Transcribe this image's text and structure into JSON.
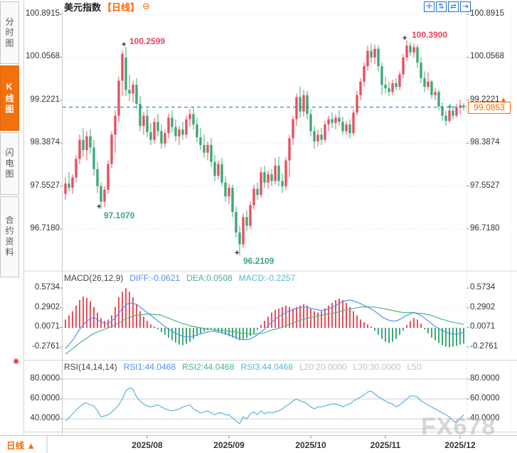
{
  "titlebar": {
    "symbol": "美元指数",
    "period": "【日线】",
    "collapse_glyph": "⊖"
  },
  "toolbar": {
    "icons": [
      {
        "name": "crosshair",
        "glyph": "✛"
      },
      {
        "name": "y-axis-scale",
        "glyph": "⇅"
      },
      {
        "name": "x-axis-scale",
        "glyph": "⇄"
      },
      {
        "name": "go-to-latest",
        "glyph": "⇥"
      }
    ]
  },
  "sidebar": {
    "tabs": [
      {
        "label": "分时图",
        "active": false
      },
      {
        "label": "K线图",
        "active": true
      },
      {
        "label": "闪电图",
        "active": false
      },
      {
        "label": "合约资料",
        "active": false
      }
    ]
  },
  "price_axis": {
    "labels": [
      "100.8915",
      "100.0568",
      "99.2221",
      "98.3874",
      "97.5527",
      "96.7180"
    ]
  },
  "macd_axis": {
    "labels": [
      "0.5734",
      "0.2902",
      "0.0071",
      "-0.2761"
    ]
  },
  "rsi_axis": {
    "labels": [
      "80.0000",
      "60.0000",
      "40.0000"
    ]
  },
  "macd_header": {
    "name": "MACD(26,12,9)",
    "diff": "DIFF:-0.0621",
    "dea": "DEA:0.0508",
    "macd": "MACD:-0.2257"
  },
  "rsi_header": {
    "name": "RSI(14,14,14)",
    "rsi1": "RSI1:44.0468",
    "rsi2": "RSI2:44.0468",
    "rsi3": "RSI3:44.0468",
    "l20": "L20:20.0000",
    "l30": "L30:30.0000",
    "l50": "L50:"
  },
  "bottom_bar": {
    "period": "日线 ▲",
    "dates": [
      "2025/08",
      "2025/09",
      "2025/10",
      "2025/11",
      "2025/12"
    ]
  },
  "watermark": "FX678",
  "ui": {
    "marker_glyph": "+",
    "live_glyph": "✺",
    "tag_arrow_glyph": "▲",
    "latest_marker_glyph": "+"
  },
  "colors": {
    "up": "#e8505f",
    "down": "#3fa877",
    "diff": "#4f93f7",
    "dea": "#4db784",
    "macd_value": "#56b7d6",
    "rsi_line": "#58b4de",
    "current_line": "#1e7fe0",
    "annotation_high": "#e8465a",
    "annotation_low": "#3aa878",
    "accent_orange": "#ff6600",
    "muted_label": "#c2c2c6",
    "toolbar_blue": "#1c6fd4"
  },
  "chart_data": {
    "type": "candlestick",
    "symbol": "美元指数",
    "period": "日线",
    "x_labels": [
      "2025/08",
      "2025/09",
      "2025/10",
      "2025/11",
      "2025/12"
    ],
    "x_label_indices": [
      23,
      46,
      69,
      90,
      111
    ],
    "price": {
      "y_ticks": [
        100.8915,
        100.0568,
        99.2221,
        98.3874,
        97.5527,
        96.718
      ],
      "current": 99.0853,
      "current_label": "99.0853",
      "annotations": [
        {
          "text": "100.2599",
          "index": 17,
          "type": "high"
        },
        {
          "text": "100.3900",
          "index": 96,
          "type": "high"
        },
        {
          "text": "97.1070",
          "index": 10,
          "type": "low"
        },
        {
          "text": "96.2109",
          "index": 49,
          "type": "low"
        }
      ],
      "candles": [
        [
          97.4,
          97.72,
          97.28,
          97.6
        ],
        [
          97.6,
          97.82,
          97.45,
          97.52
        ],
        [
          97.52,
          97.78,
          97.4,
          97.72
        ],
        [
          97.72,
          98.15,
          97.62,
          98.08
        ],
        [
          98.08,
          98.55,
          97.98,
          98.45
        ],
        [
          98.45,
          98.68,
          98.12,
          98.25
        ],
        [
          98.25,
          98.62,
          98.05,
          98.52
        ],
        [
          98.52,
          98.66,
          98.18,
          98.3
        ],
        [
          98.3,
          98.45,
          97.75,
          97.88
        ],
        [
          97.88,
          98.02,
          97.42,
          97.55
        ],
        [
          97.55,
          97.62,
          97.107,
          97.25
        ],
        [
          97.25,
          97.55,
          97.15,
          97.48
        ],
        [
          97.48,
          98.05,
          97.4,
          97.98
        ],
        [
          97.98,
          98.62,
          97.9,
          98.55
        ],
        [
          98.55,
          99.02,
          98.2,
          98.92
        ],
        [
          98.92,
          99.68,
          98.8,
          99.6
        ],
        [
          99.6,
          100.18,
          99.3,
          100.12
        ],
        [
          100.05,
          100.2599,
          99.3,
          99.42
        ],
        [
          99.42,
          99.72,
          99.2,
          99.35
        ],
        [
          99.35,
          99.6,
          99.18,
          99.52
        ],
        [
          99.52,
          99.65,
          99.05,
          99.15
        ],
        [
          99.15,
          99.3,
          98.62,
          98.72
        ],
        [
          98.72,
          99.0,
          98.55,
          98.92
        ],
        [
          98.92,
          99.05,
          98.5,
          98.6
        ],
        [
          98.6,
          98.78,
          98.35,
          98.45
        ],
        [
          98.45,
          98.88,
          98.38,
          98.8
        ],
        [
          98.8,
          98.95,
          98.52,
          98.62
        ],
        [
          98.62,
          98.75,
          98.28,
          98.38
        ],
        [
          98.38,
          98.65,
          98.3,
          98.58
        ],
        [
          98.58,
          98.95,
          98.48,
          98.88
        ],
        [
          98.88,
          99.02,
          98.6,
          98.7
        ],
        [
          98.7,
          98.85,
          98.42,
          98.52
        ],
        [
          98.52,
          98.72,
          98.35,
          98.65
        ],
        [
          98.65,
          98.8,
          98.45,
          98.55
        ],
        [
          98.55,
          98.92,
          98.48,
          98.85
        ],
        [
          98.85,
          99.05,
          98.7,
          98.95
        ],
        [
          98.95,
          99.08,
          98.65,
          98.75
        ],
        [
          98.75,
          98.88,
          98.4,
          98.5
        ],
        [
          98.5,
          98.68,
          98.25,
          98.35
        ],
        [
          98.35,
          98.55,
          98.1,
          98.2
        ],
        [
          98.2,
          98.42,
          98.05,
          98.35
        ],
        [
          98.35,
          98.48,
          97.92,
          98.02
        ],
        [
          98.02,
          98.15,
          97.65,
          97.75
        ],
        [
          97.75,
          98.05,
          97.68,
          97.98
        ],
        [
          97.98,
          98.1,
          97.55,
          97.62
        ],
        [
          97.62,
          97.75,
          97.25,
          97.35
        ],
        [
          97.35,
          97.6,
          97.2,
          97.52
        ],
        [
          97.52,
          97.58,
          96.95,
          97.05
        ],
        [
          97.05,
          97.15,
          96.55,
          96.65
        ],
        [
          96.65,
          96.78,
          96.2109,
          96.42
        ],
        [
          96.42,
          97.02,
          96.35,
          96.95
        ],
        [
          96.95,
          97.08,
          96.68,
          96.78
        ],
        [
          96.78,
          97.25,
          96.72,
          97.18
        ],
        [
          97.18,
          97.58,
          97.1,
          97.5
        ],
        [
          97.5,
          97.62,
          97.28,
          97.38
        ],
        [
          97.38,
          97.92,
          97.32,
          97.82
        ],
        [
          97.82,
          97.95,
          97.52,
          97.62
        ],
        [
          97.62,
          97.85,
          97.5,
          97.78
        ],
        [
          97.78,
          97.88,
          97.55,
          97.65
        ],
        [
          97.65,
          98.1,
          97.58,
          97.95
        ],
        [
          97.95,
          98.12,
          97.55,
          97.65
        ],
        [
          97.65,
          97.8,
          97.42,
          97.55
        ],
        [
          97.55,
          98.12,
          97.48,
          98.05
        ],
        [
          98.05,
          98.55,
          97.72,
          98.48
        ],
        [
          98.48,
          98.92,
          98.35,
          98.85
        ],
        [
          98.85,
          99.35,
          98.72,
          99.28
        ],
        [
          99.28,
          99.48,
          98.88,
          99.0
        ],
        [
          99.0,
          99.42,
          98.9,
          99.32
        ],
        [
          99.32,
          99.4,
          98.85,
          98.95
        ],
        [
          98.95,
          99.05,
          98.52,
          98.62
        ],
        [
          98.62,
          98.72,
          98.28,
          98.42
        ],
        [
          98.42,
          98.65,
          98.32,
          98.55
        ],
        [
          98.55,
          98.68,
          98.35,
          98.45
        ],
        [
          98.45,
          98.82,
          98.4,
          98.75
        ],
        [
          98.75,
          98.92,
          98.62,
          98.85
        ],
        [
          98.85,
          98.98,
          98.68,
          98.78
        ],
        [
          98.78,
          98.95,
          98.65,
          98.88
        ],
        [
          98.88,
          99.02,
          98.72,
          98.8
        ],
        [
          98.8,
          98.9,
          98.55,
          98.62
        ],
        [
          98.62,
          98.82,
          98.55,
          98.75
        ],
        [
          98.75,
          98.85,
          98.48,
          98.58
        ],
        [
          98.58,
          99.05,
          98.52,
          98.98
        ],
        [
          98.98,
          99.4,
          98.92,
          99.32
        ],
        [
          99.32,
          99.65,
          99.22,
          99.58
        ],
        [
          99.58,
          99.95,
          99.48,
          99.88
        ],
        [
          99.88,
          100.28,
          99.8,
          100.18
        ],
        [
          100.18,
          100.32,
          99.95,
          100.05
        ],
        [
          100.05,
          100.3,
          99.92,
          100.22
        ],
        [
          100.22,
          100.28,
          99.78,
          99.88
        ],
        [
          99.88,
          99.95,
          99.32,
          99.52
        ],
        [
          99.52,
          99.68,
          99.35,
          99.45
        ],
        [
          99.45,
          99.58,
          99.3,
          99.38
        ],
        [
          99.38,
          99.62,
          99.32,
          99.55
        ],
        [
          99.55,
          99.65,
          99.42,
          99.48
        ],
        [
          99.48,
          99.78,
          99.42,
          99.72
        ],
        [
          99.72,
          100.12,
          99.65,
          100.05
        ],
        [
          100.05,
          100.39,
          99.98,
          100.28
        ],
        [
          100.28,
          100.35,
          100.08,
          100.15
        ],
        [
          100.15,
          100.32,
          100.05,
          100.25
        ],
        [
          100.25,
          100.3,
          99.85,
          99.95
        ],
        [
          99.95,
          100.05,
          99.55,
          99.65
        ],
        [
          99.65,
          99.78,
          99.38,
          99.48
        ],
        [
          99.48,
          99.76,
          99.42,
          99.58
        ],
        [
          99.58,
          99.62,
          99.25,
          99.32
        ],
        [
          99.32,
          99.45,
          99.22,
          99.38
        ],
        [
          99.38,
          99.42,
          99.02,
          99.1
        ],
        [
          99.1,
          99.18,
          98.82,
          98.92
        ],
        [
          98.92,
          99.02,
          98.72,
          98.82
        ],
        [
          98.82,
          99.08,
          98.78,
          99.02
        ],
        [
          99.02,
          99.1,
          98.85,
          98.92
        ],
        [
          98.92,
          99.15,
          98.88,
          99.08
        ],
        [
          99.08,
          99.22,
          98.95,
          99.12
        ],
        [
          99.12,
          99.16,
          99.02,
          99.0853
        ]
      ]
    },
    "macd": {
      "params": [
        26,
        12,
        9
      ],
      "diff": -0.0621,
      "dea": 0.0508,
      "macd": -0.2257,
      "y_ticks": [
        0.5734,
        0.2902,
        0.0071,
        -0.2761
      ],
      "histogram": [
        0.12,
        0.18,
        0.24,
        0.32,
        0.4,
        0.45,
        0.43,
        0.38,
        0.3,
        0.22,
        0.14,
        0.1,
        0.12,
        0.18,
        0.3,
        0.44,
        0.52,
        0.57,
        0.52,
        0.44,
        0.34,
        0.24,
        0.16,
        0.1,
        0.05,
        0.02,
        -0.02,
        -0.06,
        -0.1,
        -0.14,
        -0.18,
        -0.21,
        -0.24,
        -0.25,
        -0.23,
        -0.2,
        -0.16,
        -0.12,
        -0.08,
        -0.05,
        -0.03,
        -0.02,
        -0.04,
        -0.06,
        -0.08,
        -0.1,
        -0.12,
        -0.14,
        -0.16,
        -0.18,
        -0.17,
        -0.15,
        -0.12,
        -0.08,
        -0.03,
        0.04,
        0.1,
        0.16,
        0.22,
        0.26,
        0.28,
        0.3,
        0.32,
        0.3,
        0.28,
        0.3,
        0.32,
        0.34,
        0.32,
        0.28,
        0.24,
        0.22,
        0.24,
        0.28,
        0.32,
        0.36,
        0.4,
        0.42,
        0.4,
        0.36,
        0.3,
        0.24,
        0.18,
        0.12,
        0.08,
        0.05,
        0.02,
        -0.04,
        -0.1,
        -0.16,
        -0.2,
        -0.22,
        -0.2,
        -0.16,
        -0.1,
        -0.04,
        0.04,
        0.1,
        0.14,
        0.12,
        0.06,
        -0.02,
        -0.08,
        -0.14,
        -0.18,
        -0.22,
        -0.25,
        -0.27,
        -0.28,
        -0.27,
        -0.26,
        -0.24,
        -0.2257
      ],
      "diff_series": [
        -0.3,
        -0.24,
        -0.18,
        -0.1,
        -0.02,
        0.04,
        0.1,
        0.13,
        0.15,
        0.12,
        0.08,
        0.07,
        0.06,
        0.1,
        0.14,
        0.21,
        0.28,
        0.33,
        0.36,
        0.35,
        0.34,
        0.3,
        0.26,
        0.22,
        0.18,
        0.14,
        0.1,
        0.06,
        0.02,
        -0.02,
        -0.05,
        -0.08,
        -0.1,
        -0.12,
        -0.13,
        -0.13,
        -0.12,
        -0.1,
        -0.09,
        -0.07,
        -0.06,
        -0.05,
        -0.05,
        -0.06,
        -0.07,
        -0.08,
        -0.1,
        -0.12,
        -0.14,
        -0.16,
        -0.17,
        -0.17,
        -0.16,
        -0.13,
        -0.1,
        -0.06,
        -0.02,
        0.03,
        0.08,
        0.12,
        0.16,
        0.19,
        0.22,
        0.24,
        0.26,
        0.28,
        0.29,
        0.3,
        0.3,
        0.28,
        0.27,
        0.26,
        0.25,
        0.26,
        0.27,
        0.3,
        0.32,
        0.35,
        0.38,
        0.39,
        0.4,
        0.39,
        0.37,
        0.35,
        0.32,
        0.3,
        0.27,
        0.24,
        0.2,
        0.16,
        0.13,
        0.11,
        0.1,
        0.1,
        0.12,
        0.15,
        0.18,
        0.2,
        0.22,
        0.2,
        0.18,
        0.14,
        0.1,
        0.06,
        0.02,
        -0.01,
        -0.04,
        -0.06,
        -0.08,
        -0.09,
        -0.09,
        -0.08,
        -0.0621
      ],
      "dea_series": [
        -0.38,
        -0.34,
        -0.3,
        -0.26,
        -0.22,
        -0.18,
        -0.15,
        -0.11,
        -0.08,
        -0.06,
        -0.04,
        -0.02,
        0.0,
        0.02,
        0.05,
        0.07,
        0.1,
        0.13,
        0.15,
        0.17,
        0.18,
        0.19,
        0.19,
        0.2,
        0.2,
        0.19,
        0.19,
        0.18,
        0.16,
        0.14,
        0.12,
        0.1,
        0.08,
        0.06,
        0.05,
        0.03,
        0.02,
        0.01,
        0.0,
        -0.01,
        -0.02,
        -0.02,
        -0.03,
        -0.03,
        -0.04,
        -0.04,
        -0.05,
        -0.05,
        -0.06,
        -0.07,
        -0.08,
        -0.08,
        -0.09,
        -0.09,
        -0.08,
        -0.08,
        -0.07,
        -0.05,
        -0.03,
        -0.02,
        -0.01,
        0.01,
        0.03,
        0.05,
        0.07,
        0.09,
        0.11,
        0.12,
        0.14,
        0.15,
        0.16,
        0.17,
        0.18,
        0.19,
        0.2,
        0.21,
        0.22,
        0.23,
        0.25,
        0.26,
        0.27,
        0.28,
        0.29,
        0.3,
        0.3,
        0.3,
        0.3,
        0.3,
        0.29,
        0.28,
        0.27,
        0.26,
        0.25,
        0.24,
        0.23,
        0.22,
        0.22,
        0.22,
        0.22,
        0.21,
        0.21,
        0.2,
        0.19,
        0.18,
        0.16,
        0.14,
        0.12,
        0.11,
        0.09,
        0.08,
        0.07,
        0.06,
        0.0508
      ]
    },
    "rsi": {
      "params": [
        14,
        14,
        14
      ],
      "rsi1": 44.0468,
      "rsi2": 44.0468,
      "rsi3": 44.0468,
      "levels": {
        "l20": 20.0,
        "l30": 30.0
      },
      "y_ticks": [
        80,
        60,
        40
      ],
      "grid_levels": [
        80,
        60,
        40,
        30
      ],
      "series": [
        38,
        41,
        45,
        49,
        52,
        55,
        56,
        54,
        53,
        48,
        42,
        43,
        44,
        47,
        50,
        54,
        60,
        68,
        71,
        70,
        62,
        58,
        55,
        53,
        52,
        53,
        54,
        52,
        50,
        49,
        48,
        49,
        50,
        52,
        53,
        54,
        50,
        48,
        46,
        47,
        48,
        46,
        44,
        46,
        46,
        44,
        44,
        41,
        38,
        35,
        42,
        40,
        45,
        47,
        44,
        48,
        45,
        47,
        46,
        47,
        48,
        50,
        53,
        55,
        58,
        60,
        58,
        57,
        55,
        52,
        50,
        52,
        52,
        53,
        54,
        55,
        55,
        54,
        52,
        54,
        55,
        58,
        60,
        62,
        64,
        67,
        68,
        65,
        62,
        60,
        58,
        56,
        55,
        52,
        54,
        57,
        60,
        63,
        63,
        62,
        58,
        56,
        54,
        52,
        50,
        48,
        46,
        44,
        42,
        38,
        36.5,
        40,
        44.0468
      ]
    }
  }
}
